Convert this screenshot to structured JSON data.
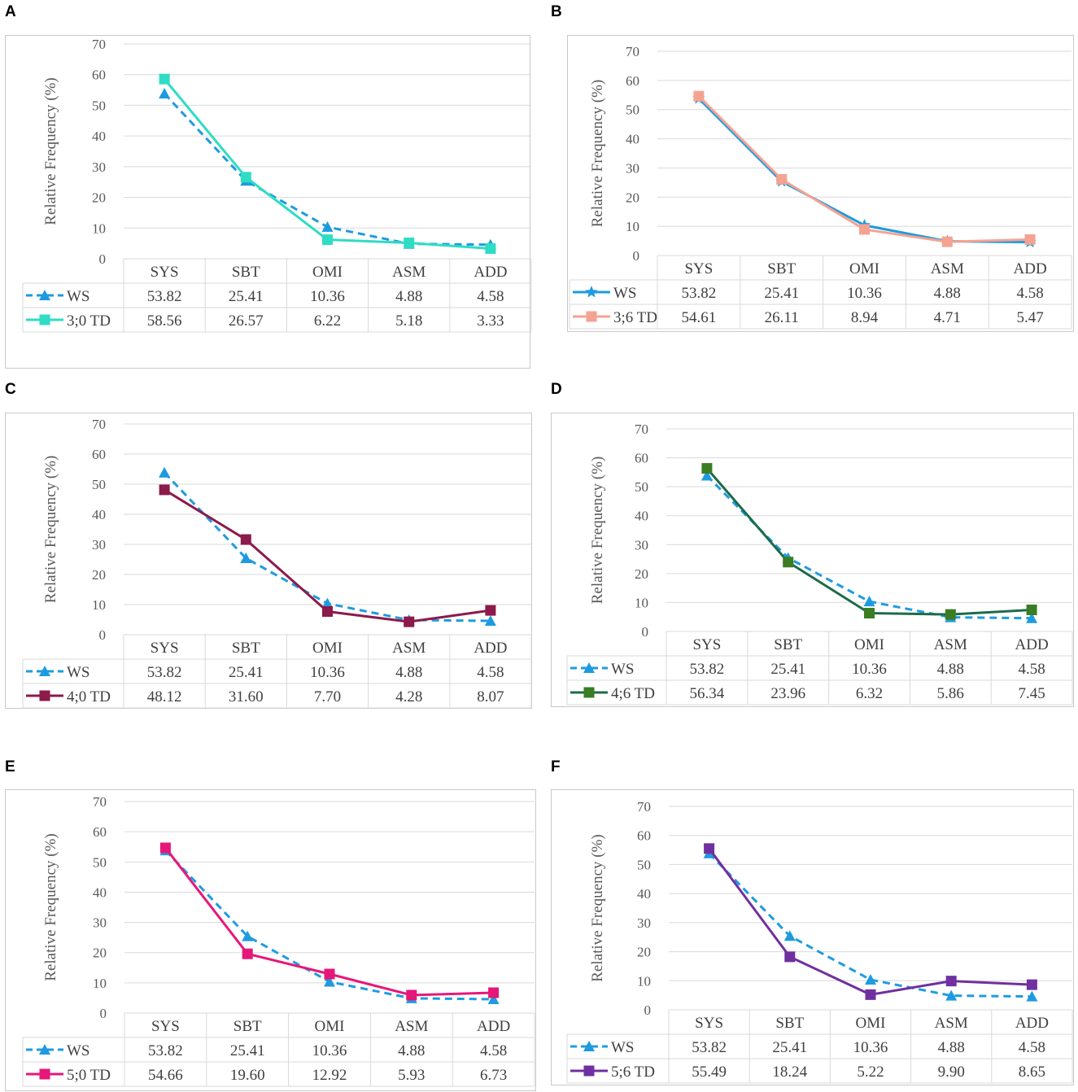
{
  "chart_data": [
    {
      "panel": "A",
      "type": "line",
      "ylabel": "Relative Frequency (%)",
      "ylim": [
        0,
        70
      ],
      "yticks": [
        0,
        10,
        20,
        30,
        40,
        50,
        60,
        70
      ],
      "categories": [
        "SYS",
        "SBT",
        "OMI",
        "ASM",
        "ADD"
      ],
      "series": [
        {
          "name": "WS",
          "display": [
            "53.82",
            "25.41",
            "10.36",
            "4.88",
            "4.58"
          ],
          "values": [
            53.82,
            25.41,
            10.36,
            4.88,
            4.58
          ],
          "color": "#1e9be0",
          "dashed": true,
          "marker": "triangle"
        },
        {
          "name": "3;0 TD",
          "display": [
            "58.56",
            "26.57",
            "6.22",
            "5.18",
            "3.33"
          ],
          "values": [
            58.56,
            26.57,
            6.22,
            5.18,
            3.33
          ],
          "color": "#2fdcc4",
          "dashed": false,
          "marker": "square"
        }
      ]
    },
    {
      "panel": "B",
      "type": "line",
      "ylabel": "Relative Frequency (%)",
      "ylim": [
        0,
        70
      ],
      "yticks": [
        0,
        10,
        20,
        30,
        40,
        50,
        60,
        70
      ],
      "categories": [
        "SYS",
        "SBT",
        "OMI",
        "ASM",
        "ADD"
      ],
      "series": [
        {
          "name": "WS",
          "display": [
            "53.82",
            "25.41",
            "10.36",
            "4.88",
            "4.58"
          ],
          "values": [
            53.82,
            25.41,
            10.36,
            4.88,
            4.58
          ],
          "color": "#1e9be0",
          "dashed": false,
          "marker": "star"
        },
        {
          "name": "3;6 TD",
          "display": [
            "54.61",
            "26.11",
            "8.94",
            "4.71",
            "5.47"
          ],
          "values": [
            54.61,
            26.11,
            8.94,
            4.71,
            5.47
          ],
          "color": "#f4a391",
          "dashed": false,
          "marker": "square"
        }
      ]
    },
    {
      "panel": "C",
      "type": "line",
      "ylabel": "Relative Frequency (%)",
      "ylim": [
        0,
        70
      ],
      "yticks": [
        0,
        10,
        20,
        30,
        40,
        50,
        60,
        70
      ],
      "categories": [
        "SYS",
        "SBT",
        "OMI",
        "ASM",
        "ADD"
      ],
      "series": [
        {
          "name": "WS",
          "display": [
            "53.82",
            "25.41",
            "10.36",
            "4.88",
            "4.58"
          ],
          "values": [
            53.82,
            25.41,
            10.36,
            4.88,
            4.58
          ],
          "color": "#1e9be0",
          "dashed": true,
          "marker": "triangle"
        },
        {
          "name": "4;0 TD",
          "display": [
            "48.12",
            "31.60",
            "7.70",
            "4.28",
            "8.07"
          ],
          "values": [
            48.12,
            31.6,
            7.7,
            4.28,
            8.07
          ],
          "color": "#8c1a4b",
          "dashed": false,
          "marker": "square"
        }
      ]
    },
    {
      "panel": "D",
      "type": "line",
      "ylabel": "Relative Frequency (%)",
      "ylim": [
        0,
        70
      ],
      "yticks": [
        0,
        10,
        20,
        30,
        40,
        50,
        60,
        70
      ],
      "categories": [
        "SYS",
        "SBT",
        "OMI",
        "ASM",
        "ADD"
      ],
      "series": [
        {
          "name": "WS",
          "display": [
            "53.82",
            "25.41",
            "10.36",
            "4.88",
            "4.58"
          ],
          "values": [
            53.82,
            25.41,
            10.36,
            4.88,
            4.58
          ],
          "color": "#1e9be0",
          "dashed": true,
          "marker": "triangle"
        },
        {
          "name": "4;6 TD",
          "display": [
            "56.34",
            "23.96",
            "6.32",
            "5.86",
            "7.45"
          ],
          "values": [
            56.34,
            23.96,
            6.32,
            5.86,
            7.45
          ],
          "color": "#1d6b4a",
          "dashed": false,
          "marker": "square",
          "markerColor": "#3a7d22"
        }
      ]
    },
    {
      "panel": "E",
      "type": "line",
      "ylabel": "Relative Frequency (%)",
      "ylim": [
        0,
        70
      ],
      "yticks": [
        0,
        10,
        20,
        30,
        40,
        50,
        60,
        70
      ],
      "categories": [
        "SYS",
        "SBT",
        "OMI",
        "ASM",
        "ADD"
      ],
      "series": [
        {
          "name": "WS",
          "display": [
            "53.82",
            "25.41",
            "10.36",
            "4.88",
            "4.58"
          ],
          "values": [
            53.82,
            25.41,
            10.36,
            4.88,
            4.58
          ],
          "color": "#1e9be0",
          "dashed": true,
          "marker": "triangle"
        },
        {
          "name": "5;0 TD",
          "display": [
            "54.66",
            "19.60",
            "12.92",
            "5.93",
            "6.73"
          ],
          "values": [
            54.66,
            19.6,
            12.92,
            5.93,
            6.73
          ],
          "color": "#e6177a",
          "dashed": false,
          "marker": "square"
        }
      ]
    },
    {
      "panel": "F",
      "type": "line",
      "ylabel": "Relative Frequency (%)",
      "ylim": [
        0,
        70
      ],
      "yticks": [
        0,
        10,
        20,
        30,
        40,
        50,
        60,
        70
      ],
      "categories": [
        "SYS",
        "SBT",
        "OMI",
        "ASM",
        "ADD"
      ],
      "series": [
        {
          "name": "WS",
          "display": [
            "53.82",
            "25.41",
            "10.36",
            "4.88",
            "4.58"
          ],
          "values": [
            53.82,
            25.41,
            10.36,
            4.88,
            4.58
          ],
          "color": "#1e9be0",
          "dashed": true,
          "marker": "triangle"
        },
        {
          "name": "5;6 TD",
          "display": [
            "55.49",
            "18.24",
            "5.22",
            "9.90",
            "8.65"
          ],
          "values": [
            55.49,
            18.24,
            5.22,
            9.9,
            8.65
          ],
          "color": "#7030a0",
          "dashed": false,
          "marker": "square"
        }
      ]
    }
  ]
}
